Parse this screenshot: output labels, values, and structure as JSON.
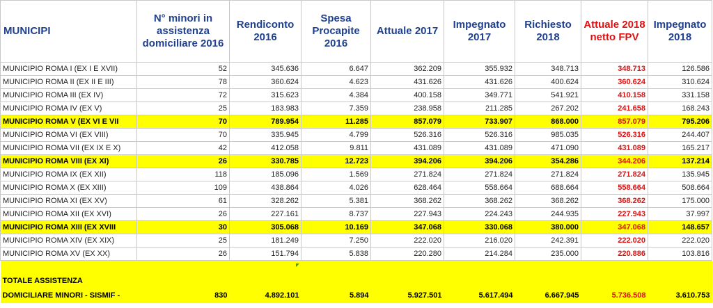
{
  "headers": {
    "municipi": "MUNICIPI",
    "minori": "N° minori in assistenza domiciliare 2016",
    "rendiconto": "Rendiconto 2016",
    "spesa": "Spesa Procapite 2016",
    "attuale": "Attuale 2017",
    "impegnato2017": "Impegnato 2017",
    "richiesto": "Richiesto 2018",
    "attuale2018": "Attuale 2018 netto FPV",
    "impegnato2018": "Impegnato 2018"
  },
  "rows": [
    {
      "name": "MUNICIPIO ROMA I (EX I E XVII)",
      "minori": "52",
      "rendiconto": "345.636",
      "spesa": "6.647",
      "attuale": "362.209",
      "imp17": "355.932",
      "richiesto": "348.713",
      "att18": "348.713",
      "imp18": "126.586"
    },
    {
      "name": "MUNICIPIO ROMA II (EX II E III)",
      "minori": "78",
      "rendiconto": "360.624",
      "spesa": "4.623",
      "attuale": "431.626",
      "imp17": "431.626",
      "richiesto": "400.624",
      "att18": "360.624",
      "imp18": "310.624"
    },
    {
      "name": "MUNICIPIO ROMA III (EX IV)",
      "minori": "72",
      "rendiconto": "315.623",
      "spesa": "4.384",
      "attuale": "400.158",
      "imp17": "349.771",
      "richiesto": "541.921",
      "att18": "410.158",
      "imp18": "331.158"
    },
    {
      "name": "MUNICIPIO ROMA IV (EX V)",
      "minori": "25",
      "rendiconto": "183.983",
      "spesa": "7.359",
      "attuale": "238.958",
      "imp17": "211.285",
      "richiesto": "267.202",
      "att18": "241.658",
      "imp18": "168.243"
    },
    {
      "name": "MUNICIPIO ROMA V (EX VI E VII",
      "minori": "70",
      "rendiconto": "789.954",
      "spesa": "11.285",
      "attuale": "857.079",
      "imp17": "733.907",
      "richiesto": "868.000",
      "att18": "857.079",
      "imp18": "795.206"
    },
    {
      "name": "MUNICIPIO ROMA VI (EX VIII)",
      "minori": "70",
      "rendiconto": "335.945",
      "spesa": "4.799",
      "attuale": "526.316",
      "imp17": "526.316",
      "richiesto": "985.035",
      "att18": "526.316",
      "imp18": "244.407"
    },
    {
      "name": "MUNICIPIO ROMA VII (EX IX E X)",
      "minori": "42",
      "rendiconto": "412.058",
      "spesa": "9.811",
      "attuale": "431.089",
      "imp17": "431.089",
      "richiesto": "471.090",
      "att18": "431.089",
      "imp18": "165.217"
    },
    {
      "name": "MUNICIPIO ROMA VIII (EX XI)",
      "minori": "26",
      "rendiconto": "330.785",
      "spesa": "12.723",
      "attuale": "394.206",
      "imp17": "394.206",
      "richiesto": "354.286",
      "att18": "344.206",
      "imp18": "137.214"
    },
    {
      "name": "MUNICIPIO ROMA IX (EX XII)",
      "minori": "118",
      "rendiconto": "185.096",
      "spesa": "1.569",
      "attuale": "271.824",
      "imp17": "271.824",
      "richiesto": "271.824",
      "att18": "271.824",
      "imp18": "135.945"
    },
    {
      "name": "MUNICIPIO ROMA X (EX XIII)",
      "minori": "109",
      "rendiconto": "438.864",
      "spesa": "4.026",
      "attuale": "628.464",
      "imp17": "558.664",
      "richiesto": "688.664",
      "att18": "558.664",
      "imp18": "508.664"
    },
    {
      "name": "MUNICIPIO ROMA XI (EX XV)",
      "minori": "61",
      "rendiconto": "328.262",
      "spesa": "5.381",
      "attuale": "368.262",
      "imp17": "368.262",
      "richiesto": "368.262",
      "att18": "368.262",
      "imp18": "175.000"
    },
    {
      "name": "MUNICIPIO ROMA XII (EX XVI)",
      "minori": "26",
      "rendiconto": "227.161",
      "spesa": "8.737",
      "attuale": "227.943",
      "imp17": "224.243",
      "richiesto": "244.935",
      "att18": "227.943",
      "imp18": "37.997"
    },
    {
      "name": "MUNICIPIO ROMA XIII (EX XVIII",
      "minori": "30",
      "rendiconto": "305.068",
      "spesa": "10.169",
      "attuale": "347.068",
      "imp17": "330.068",
      "richiesto": "380.000",
      "att18": "347.068",
      "imp18": "148.657"
    },
    {
      "name": "MUNICIPIO ROMA XIV (EX XIX)",
      "minori": "25",
      "rendiconto": "181.249",
      "spesa": "7.250",
      "attuale": "222.020",
      "imp17": "216.020",
      "richiesto": "242.391",
      "att18": "222.020",
      "imp18": "222.020"
    },
    {
      "name": "MUNICIPIO ROMA XV (EX XX)",
      "minori": "26",
      "rendiconto": "151.794",
      "spesa": "5.838",
      "attuale": "220.280",
      "imp17": "214.284",
      "richiesto": "235.000",
      "att18": "220.886",
      "imp18": "103.816"
    }
  ],
  "highlight_color": "#ffff00",
  "total": {
    "line1": "TOTALE ASSISTENZA",
    "line2": "DOMICILIARE MINORI - SISMIF -",
    "minori": "830",
    "rendiconto": "4.892.101",
    "spesa": "5.894",
    "attuale": "5.927.501",
    "imp17": "5.617.494",
    "richiesto": "6.667.945",
    "att18": "5.736.508",
    "imp18": "3.610.753"
  }
}
